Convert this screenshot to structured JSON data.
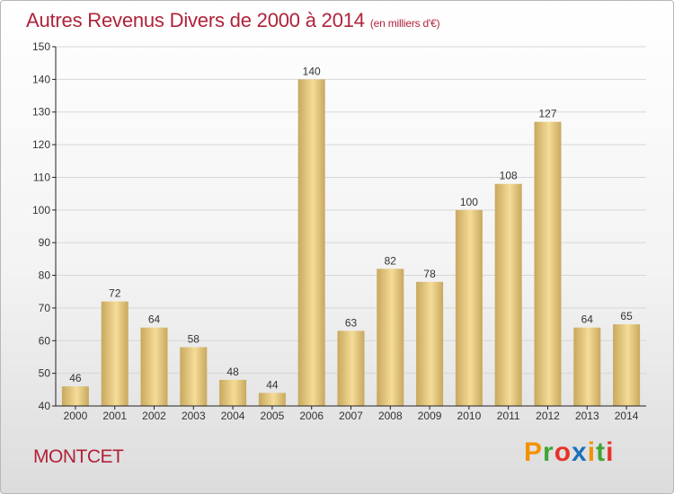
{
  "header": {
    "title": "Autres Revenus Divers de 2000 à 2014",
    "subtitle": "(en milliers d'€)"
  },
  "footer": {
    "location": "MONTCET",
    "brand": "Proxiti",
    "brand_colors": [
      "#f39200",
      "#3fa535",
      "#e6332a",
      "#1d71b8",
      "#f39200",
      "#3fa535",
      "#e6332a"
    ]
  },
  "colors": {
    "bar_light": "#f5dc98",
    "bar_dark": "#c8a85e",
    "axis": "#222222",
    "grid": "#d7d7d7",
    "title": "#b0223a"
  },
  "chart_data": {
    "type": "bar",
    "title": "Autres Revenus Divers de 2000 à 2014",
    "subtitle": "(en milliers d'€)",
    "categories": [
      "2000",
      "2001",
      "2002",
      "2003",
      "2004",
      "2005",
      "2006",
      "2007",
      "2008",
      "2009",
      "2010",
      "2011",
      "2012",
      "2013",
      "2014"
    ],
    "values": [
      46,
      72,
      64,
      58,
      48,
      44,
      140,
      63,
      82,
      78,
      100,
      108,
      127,
      64,
      65
    ],
    "ylim": [
      40,
      150
    ],
    "yticks": [
      40,
      50,
      60,
      70,
      80,
      90,
      100,
      110,
      120,
      130,
      140,
      150
    ],
    "grid": true,
    "data_labels": true
  }
}
